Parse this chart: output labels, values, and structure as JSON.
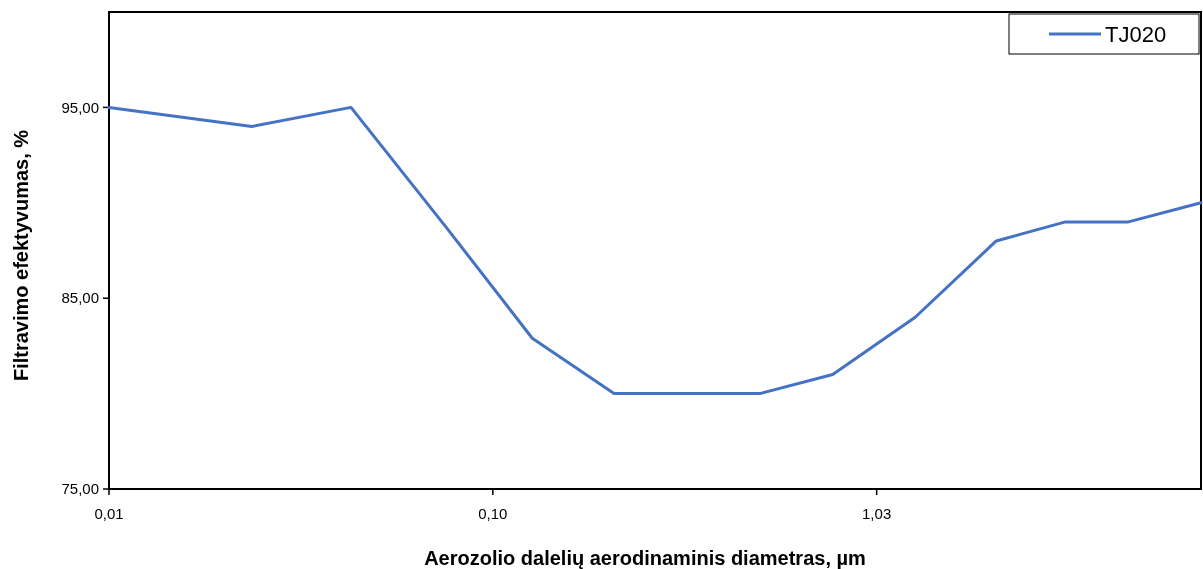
{
  "chart_data": {
    "type": "line",
    "xlabel": "Aerozolio dalelių aerodinaminis diametras, µm",
    "ylabel": "Filtravimo efektyvumas, %",
    "log": "x",
    "xlim": [
      0.01,
      7.3
    ],
    "xticks": [
      {
        "value": 0.01,
        "label": "0,01"
      },
      {
        "value": 0.1015,
        "label": "0,10"
      },
      {
        "value": 1.03,
        "label": "1,03"
      }
    ],
    "ylim": [
      75,
      100
    ],
    "yticks": [
      {
        "value": 75,
        "label": "75,00"
      },
      {
        "value": 85,
        "label": "85,00"
      },
      {
        "value": 95,
        "label": "95,00"
      }
    ],
    "grid": false,
    "legend": "top right",
    "line_style": "solid",
    "marker": "none",
    "series": [
      {
        "name": "TJ020",
        "color": "#4472c4",
        "x": [
          0.01,
          0.0237,
          0.0431,
          0.0767,
          0.1288,
          0.211,
          0.509,
          0.79,
          1.3,
          2.12,
          3.22,
          4.71,
          7.3
        ],
        "values": [
          95,
          94,
          95,
          88.7,
          82.9,
          80,
          80,
          81,
          84,
          88,
          89,
          89,
          90
        ]
      }
    ]
  }
}
